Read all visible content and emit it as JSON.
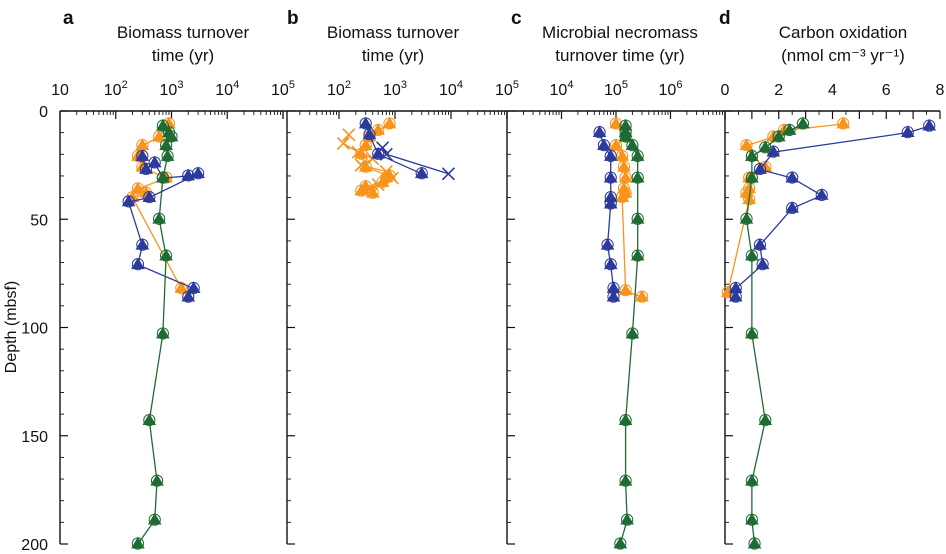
{
  "figure": {
    "ylabel": "Depth (mbsf)",
    "yticks": [
      0,
      50,
      100,
      150,
      200
    ],
    "ylim": [
      0,
      200
    ]
  },
  "colors": {
    "orange": "#f7941d",
    "blue": "#2b3a9b",
    "green": "#1e6b33",
    "axis": "#111111"
  },
  "panels": [
    {
      "letter": "a",
      "title_lines": [
        "Biomass turnover",
        "time (yr)"
      ],
      "scale": "log",
      "xlim": [
        10,
        100000
      ],
      "tick_labels": [
        {
          "base": "10",
          "exp": "",
          "value": 10
        },
        {
          "base": "10",
          "exp": "2",
          "value": 100
        },
        {
          "base": "10",
          "exp": "3",
          "value": 1000
        },
        {
          "base": "10",
          "exp": "4",
          "value": 10000
        },
        {
          "base": "10",
          "exp": "5",
          "value": 100000
        }
      ]
    },
    {
      "letter": "b",
      "title_lines": [
        "Biomass turnover",
        "time (yr)"
      ],
      "scale": "log",
      "xlim": [
        10,
        100000
      ],
      "tick_labels": [
        {
          "base": "10",
          "exp": "2",
          "value": 100
        },
        {
          "base": "10",
          "exp": "3",
          "value": 1000
        },
        {
          "base": "10",
          "exp": "4",
          "value": 10000
        },
        {
          "base": "10",
          "exp": "5",
          "value": 100000
        }
      ]
    },
    {
      "letter": "c",
      "title_lines": [
        "Microbial necromass",
        "turnover time (yr)"
      ],
      "scale": "log",
      "xlim": [
        1000,
        10000000
      ],
      "tick_labels": [
        {
          "base": "10",
          "exp": "4",
          "value": 10000
        },
        {
          "base": "10",
          "exp": "5",
          "value": 100000
        },
        {
          "base": "10",
          "exp": "6",
          "value": 1000000
        }
      ]
    },
    {
      "letter": "d",
      "title_lines": [
        "Carbon oxidation",
        "(nmol cm⁻³ yr⁻¹)"
      ],
      "scale": "linear",
      "xlim": [
        0,
        8
      ],
      "tick_labels": [
        {
          "base": "0",
          "exp": "",
          "value": 0
        },
        {
          "base": "2",
          "exp": "",
          "value": 2
        },
        {
          "base": "4",
          "exp": "",
          "value": 4
        },
        {
          "base": "6",
          "exp": "",
          "value": 6
        },
        {
          "base": "8",
          "exp": "",
          "value": 8
        }
      ]
    }
  ],
  "chart_data": [
    {
      "type": "line",
      "panel": "a",
      "title": "Biomass turnover time (yr)",
      "xscale": "log",
      "xlim": [
        10,
        100000
      ],
      "ylim": [
        0,
        200
      ],
      "ylabel": "Depth (mbsf)",
      "series": [
        {
          "color": "orange",
          "marker": "triangle",
          "points": [
            [
              900,
              6
            ],
            [
              600,
              12
            ],
            [
              300,
              16
            ],
            [
              250,
              21
            ],
            [
              300,
              26
            ],
            [
              800,
              31
            ],
            [
              250,
              36
            ],
            [
              350,
              38
            ],
            [
              200,
              40
            ],
            [
              1500,
              82
            ],
            [
              2000,
              86
            ]
          ]
        },
        {
          "color": "blue",
          "marker": "triangle",
          "points": [
            [
              300,
              21
            ],
            [
              350,
              27
            ],
            [
              500,
              24
            ],
            [
              700,
              31
            ],
            [
              2000,
              30
            ],
            [
              3000,
              29
            ],
            [
              400,
              40
            ],
            [
              170,
              42
            ],
            [
              300,
              62
            ],
            [
              250,
              71
            ],
            [
              2500,
              82
            ],
            [
              2000,
              86
            ]
          ]
        },
        {
          "color": "green",
          "marker": "triangle",
          "points": [
            [
              700,
              7
            ],
            [
              900,
              10
            ],
            [
              1000,
              12
            ],
            [
              800,
              16
            ],
            [
              850,
              21
            ],
            [
              700,
              31
            ],
            [
              600,
              50
            ],
            [
              800,
              67
            ],
            [
              700,
              103
            ],
            [
              400,
              143
            ],
            [
              550,
              171
            ],
            [
              500,
              189
            ],
            [
              250,
              200
            ]
          ]
        }
      ]
    },
    {
      "type": "line",
      "panel": "b",
      "title": "Biomass turnover time (yr)",
      "xscale": "log",
      "xlim": [
        10,
        100000
      ],
      "ylim": [
        0,
        200
      ],
      "series": [
        {
          "color": "orange",
          "marker": "triangle",
          "points": [
            [
              800,
              6
            ],
            [
              500,
              9
            ],
            [
              350,
              12
            ],
            [
              300,
              16
            ],
            [
              250,
              20
            ],
            [
              300,
              26
            ],
            [
              800,
              30
            ],
            [
              600,
              33
            ],
            [
              300,
              35
            ],
            [
              250,
              37
            ],
            [
              400,
              38
            ],
            [
              700,
              31
            ]
          ]
        },
        {
          "color": "orange",
          "marker": "cross",
          "points": [
            [
              150,
              11
            ],
            [
              120,
              15
            ],
            [
              220,
              19
            ],
            [
              400,
              22
            ],
            [
              250,
              25
            ],
            [
              700,
              28
            ],
            [
              900,
              31
            ],
            [
              500,
              34
            ],
            [
              350,
              36
            ]
          ]
        },
        {
          "color": "blue",
          "marker": "triangle",
          "points": [
            [
              300,
              6
            ],
            [
              350,
              11
            ],
            [
              500,
              20
            ],
            [
              3000,
              29
            ]
          ]
        },
        {
          "color": "blue",
          "marker": "cross",
          "points": [
            [
              600,
              17
            ],
            [
              700,
              20
            ],
            [
              9000,
              29
            ]
          ]
        }
      ]
    },
    {
      "type": "line",
      "panel": "c",
      "title": "Microbial necromass turnover time (yr)",
      "xscale": "log",
      "xlim": [
        1000,
        10000000
      ],
      "ylim": [
        0,
        200
      ],
      "series": [
        {
          "color": "orange",
          "marker": "triangle",
          "points": [
            [
              100000,
              6
            ],
            [
              150000,
              12
            ],
            [
              100000,
              16
            ],
            [
              130000,
              21
            ],
            [
              140000,
              26
            ],
            [
              150000,
              31
            ],
            [
              140000,
              36
            ],
            [
              150000,
              38
            ],
            [
              130000,
              40
            ],
            [
              150000,
              83
            ],
            [
              300000,
              86
            ]
          ]
        },
        {
          "color": "blue",
          "marker": "triangle",
          "points": [
            [
              50000,
              10
            ],
            [
              60000,
              16
            ],
            [
              80000,
              21
            ],
            [
              80000,
              31
            ],
            [
              80000,
              40
            ],
            [
              80000,
              43
            ],
            [
              70000,
              62
            ],
            [
              80000,
              71
            ],
            [
              90000,
              82
            ],
            [
              90000,
              86
            ]
          ]
        },
        {
          "color": "green",
          "marker": "triangle",
          "points": [
            [
              150000,
              7
            ],
            [
              150000,
              10
            ],
            [
              150000,
              12
            ],
            [
              200000,
              16
            ],
            [
              250000,
              21
            ],
            [
              250000,
              31
            ],
            [
              250000,
              50
            ],
            [
              250000,
              67
            ],
            [
              200000,
              103
            ],
            [
              150000,
              143
            ],
            [
              150000,
              171
            ],
            [
              160000,
              189
            ],
            [
              120000,
              200
            ]
          ]
        }
      ]
    },
    {
      "type": "line",
      "panel": "d",
      "title": "Carbon oxidation (nmol cm⁻³ yr⁻¹)",
      "xscale": "linear",
      "xlim": [
        0,
        8
      ],
      "ylim": [
        0,
        200
      ],
      "series": [
        {
          "color": "orange",
          "marker": "triangle",
          "points": [
            [
              4.4,
              6
            ],
            [
              2.2,
              9
            ],
            [
              1.8,
              12
            ],
            [
              0.8,
              16
            ],
            [
              1.0,
              21
            ],
            [
              1.5,
              26
            ],
            [
              0.9,
              31
            ],
            [
              0.9,
              36
            ],
            [
              0.8,
              38
            ],
            [
              0.9,
              41
            ],
            [
              0.1,
              84
            ]
          ]
        },
        {
          "color": "blue",
          "marker": "triangle",
          "points": [
            [
              7.6,
              7
            ],
            [
              6.8,
              10
            ],
            [
              1.8,
              19
            ],
            [
              1.3,
              27
            ],
            [
              2.5,
              31
            ],
            [
              3.6,
              39
            ],
            [
              2.5,
              45
            ],
            [
              1.3,
              62
            ],
            [
              1.4,
              71
            ],
            [
              0.4,
              82
            ],
            [
              0.4,
              86
            ]
          ]
        },
        {
          "color": "green",
          "marker": "triangle",
          "points": [
            [
              2.9,
              6
            ],
            [
              2.4,
              9
            ],
            [
              2.0,
              12
            ],
            [
              1.5,
              17
            ],
            [
              1.0,
              21
            ],
            [
              1.0,
              31
            ],
            [
              0.8,
              50
            ],
            [
              1.0,
              67
            ],
            [
              1.0,
              103
            ],
            [
              1.5,
              143
            ],
            [
              1.0,
              171
            ],
            [
              1.0,
              189
            ],
            [
              1.1,
              200
            ]
          ]
        }
      ]
    }
  ]
}
